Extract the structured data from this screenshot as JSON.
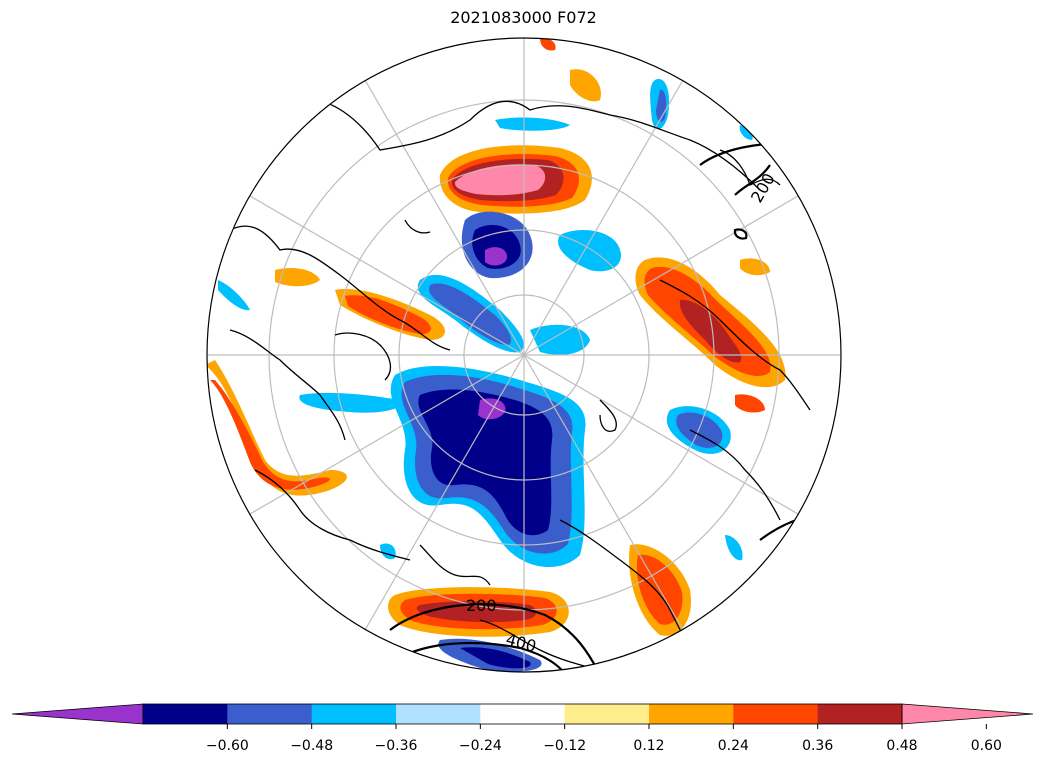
{
  "title": "2021083000 F072",
  "contour_labels": [
    "200",
    "200",
    "400"
  ],
  "colorbar": {
    "colors": [
      "#9933cc",
      "#00008b",
      "#3a5fcd",
      "#00bfff",
      "#b0e2ff",
      "#ffffff",
      "#ffec8b",
      "#ffa500",
      "#ff4500",
      "#b22222",
      "#ff88aa"
    ],
    "ticks": [
      "−0.60",
      "−0.48",
      "−0.36",
      "−0.24",
      "−0.12",
      "0.12",
      "0.24",
      "0.36",
      "0.48",
      "0.60"
    ],
    "extend": "both"
  },
  "projection": "north-polar-stereographic"
}
